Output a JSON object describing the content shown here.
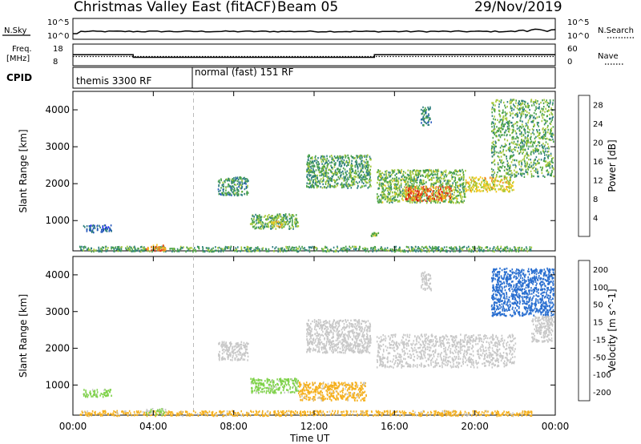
{
  "header": {
    "title": "Christmas Valley East (fitACF)",
    "beam": "Beam 05",
    "date": "29/Nov/2019"
  },
  "top_panels": {
    "nsky_label": "N.Sky",
    "nsearch_label": "N.Search",
    "noise_ticks": [
      "10^5",
      "10^0"
    ],
    "freq_label_1": "Freq.",
    "freq_label_2": "[MHz]",
    "freq_ticks": [
      "18",
      "8"
    ],
    "nave_label": "Nave",
    "nave_ticks": [
      "60",
      "0"
    ],
    "cpid_label": "CPID",
    "cpid_modes": [
      "themis 3300 RF",
      "normal (fast) 151 RF"
    ]
  },
  "chart_data": [
    {
      "type": "heatmap",
      "title": "",
      "xlabel": "",
      "ylabel": "Slant Range [km]",
      "xlim": [
        0,
        24
      ],
      "ylim": [
        180,
        4500
      ],
      "xticks": [
        0,
        4,
        8,
        12,
        16,
        20,
        24
      ],
      "yticks": [
        1000,
        2000,
        3000,
        4000
      ],
      "colorbar": {
        "label": "Power [dB]",
        "ticks": [
          "4",
          "8",
          "12",
          "16",
          "20",
          "24",
          "28"
        ],
        "range": [
          0,
          30
        ],
        "colors": [
          "#1a1aff",
          "#2255bb",
          "#2f7f7f",
          "#4aa24a",
          "#a6c93a",
          "#f2c81e",
          "#f08a1e",
          "#e83c1e",
          "#cc0000"
        ]
      },
      "regions": [
        {
          "x": [
            0.5,
            1.9
          ],
          "y": [
            700,
            900
          ],
          "value": 6
        },
        {
          "x": [
            0.3,
            22.8
          ],
          "y": [
            180,
            320
          ],
          "value": 11
        },
        {
          "x": [
            3.6,
            4.6
          ],
          "y": [
            200,
            380
          ],
          "value": 22
        },
        {
          "x": [
            7.2,
            8.7
          ],
          "y": [
            1700,
            2200
          ],
          "value": 10
        },
        {
          "x": [
            8.8,
            11.2
          ],
          "y": [
            800,
            1200
          ],
          "value": 12
        },
        {
          "x": [
            9.8,
            10.6
          ],
          "y": [
            850,
            1000
          ],
          "value": 17
        },
        {
          "x": [
            11.6,
            14.8
          ],
          "y": [
            1900,
            2800
          ],
          "value": 11
        },
        {
          "x": [
            15.1,
            19.5
          ],
          "y": [
            1500,
            2400
          ],
          "value": 13
        },
        {
          "x": [
            16.5,
            18.8
          ],
          "y": [
            1550,
            1950
          ],
          "value": 23
        },
        {
          "x": [
            19.5,
            21.9
          ],
          "y": [
            1800,
            2200
          ],
          "value": 17
        },
        {
          "x": [
            14.8,
            15.2
          ],
          "y": [
            600,
            700
          ],
          "value": 14
        },
        {
          "x": [
            17.3,
            17.8
          ],
          "y": [
            3600,
            4100
          ],
          "value": 9
        },
        {
          "x": [
            20.8,
            23.9
          ],
          "y": [
            2200,
            4300
          ],
          "value": 12
        }
      ]
    },
    {
      "type": "heatmap",
      "title": "",
      "xlabel": "Time UT",
      "ylabel": "Slant Range [km]",
      "xlim": [
        0,
        24
      ],
      "ylim": [
        180,
        4500
      ],
      "xticks": [
        0,
        4,
        8,
        12,
        16,
        20,
        24
      ],
      "xticklabels": [
        "00:00",
        "04:00",
        "08:00",
        "12:00",
        "16:00",
        "20:00",
        "00:00"
      ],
      "yticks": [
        1000,
        2000,
        3000,
        4000
      ],
      "colorbar": {
        "label": "Velocity [m s^-1]",
        "ticks": [
          "200",
          "100",
          "50",
          "15",
          "-15",
          "-50",
          "-100",
          "-200"
        ],
        "range": [
          -250,
          250
        ],
        "colors": [
          "#d40000",
          "#f04a1e",
          "#f58a1e",
          "#f5b01e",
          "#c8c8c8",
          "#7fd24a",
          "#3fa03f",
          "#2a6fd0",
          "#1a1ad0"
        ]
      },
      "regions": [
        {
          "x": [
            0.5,
            1.9
          ],
          "y": [
            700,
            900
          ],
          "value": 40
        },
        {
          "x": [
            0.3,
            22.8
          ],
          "y": [
            180,
            320
          ],
          "value": -40
        },
        {
          "x": [
            3.6,
            4.6
          ],
          "y": [
            200,
            380
          ],
          "value": 30
        },
        {
          "x": [
            7.2,
            8.7
          ],
          "y": [
            1700,
            2200
          ],
          "value": 0
        },
        {
          "x": [
            8.8,
            11.2
          ],
          "y": [
            800,
            1200
          ],
          "value": 40
        },
        {
          "x": [
            11.2,
            14.6
          ],
          "y": [
            600,
            1100
          ],
          "value": -40
        },
        {
          "x": [
            11.6,
            14.8
          ],
          "y": [
            1900,
            2800
          ],
          "value": 0
        },
        {
          "x": [
            15.1,
            22.0
          ],
          "y": [
            1500,
            2400
          ],
          "value": 0
        },
        {
          "x": [
            20.8,
            23.9
          ],
          "y": [
            2900,
            4200
          ],
          "value": 160
        },
        {
          "x": [
            22.8,
            23.9
          ],
          "y": [
            2200,
            2900
          ],
          "value": 0
        },
        {
          "x": [
            17.3,
            17.8
          ],
          "y": [
            3600,
            4100
          ],
          "value": 0
        }
      ]
    }
  ],
  "cpid_change_hours": [
    3,
    6,
    15
  ],
  "freq_levels": [
    12,
    10.5,
    12
  ],
  "colors": {
    "grid_dash": "#bbbbbb",
    "axis": "#000000"
  }
}
